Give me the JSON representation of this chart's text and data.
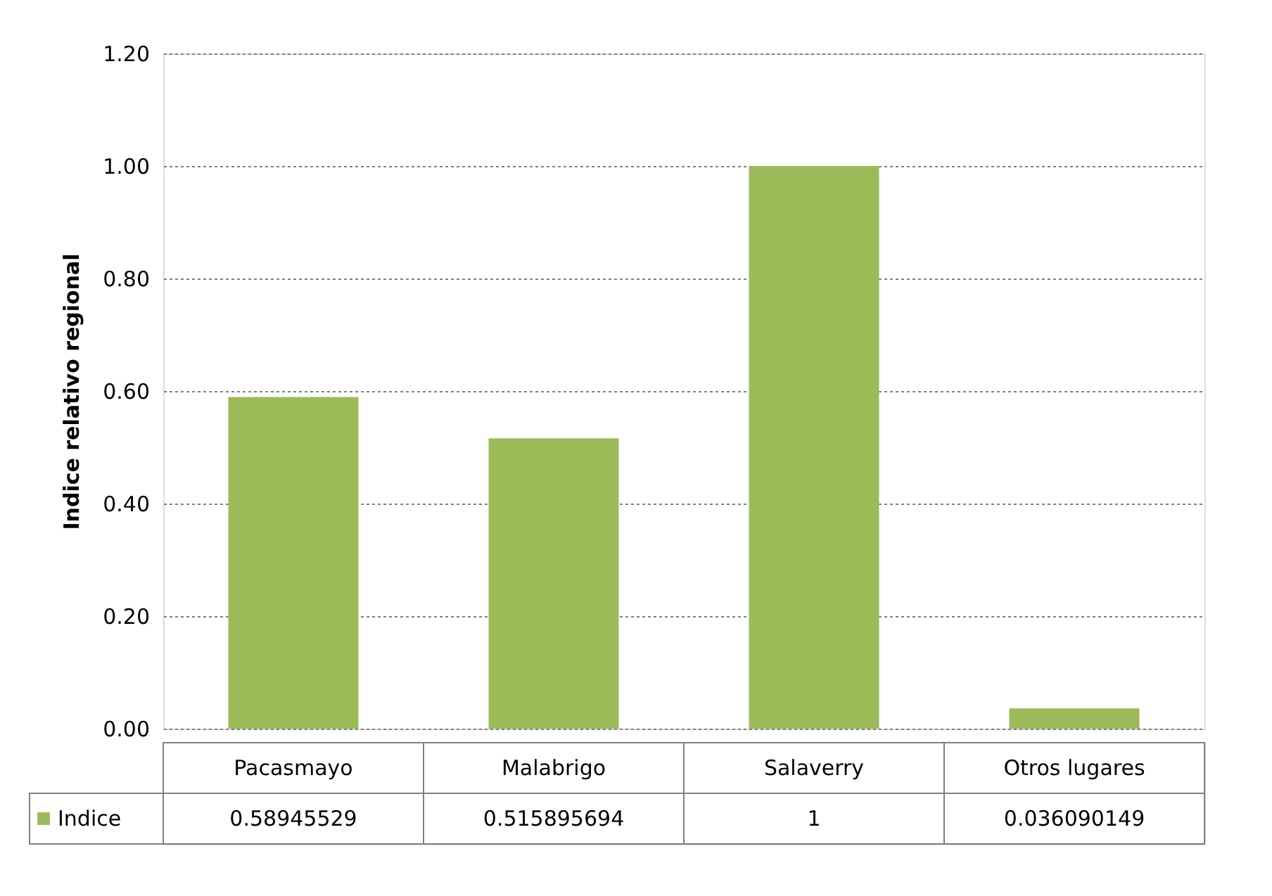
{
  "chart_data": {
    "type": "bar",
    "ylabel": "Indice relativo regional",
    "categories": [
      "Pacasmayo",
      "Malabrigo",
      "Salaverry",
      "Otros lugares"
    ],
    "series": [
      {
        "name": "Indice",
        "color": "#9bbb59",
        "values": [
          0.58945529,
          0.515895694,
          1,
          0.036090149
        ]
      }
    ],
    "ylim": [
      0,
      1.2
    ],
    "yticks": [
      {
        "value": 0,
        "label": "0.00"
      },
      {
        "value": 0.2,
        "label": "0.20"
      },
      {
        "value": 0.4,
        "label": "0.40"
      },
      {
        "value": 0.6,
        "label": "0.60"
      },
      {
        "value": 0.8,
        "label": "0.80"
      },
      {
        "value": 1.0,
        "label": "1.00"
      },
      {
        "value": 1.2,
        "label": "1.20"
      }
    ],
    "grid": "y",
    "legend": "bottom",
    "data_labels": true
  }
}
